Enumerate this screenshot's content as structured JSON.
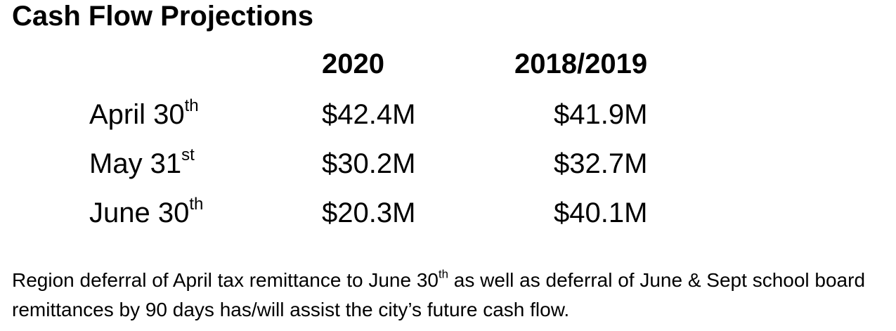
{
  "title": "Cash Flow Projections",
  "columns": [
    "2020",
    "2018/2019"
  ],
  "rows": [
    {
      "label": "April 30",
      "suffix": "th",
      "value_2020": "$42.4M",
      "value_prior": "$41.9M"
    },
    {
      "label": "May 31",
      "suffix": "st",
      "value_2020": "$30.2M",
      "value_prior": "$32.7M"
    },
    {
      "label": "June 30",
      "suffix": "th",
      "value_2020": "$20.3M",
      "value_prior": "$40.1M"
    }
  ],
  "note": {
    "part1": "Region deferral of April tax remittance to June 30",
    "sup": "th",
    "part2": " as well as deferral of June & Sept school board remittances by 90 days has/will assist the city’s future cash flow."
  }
}
